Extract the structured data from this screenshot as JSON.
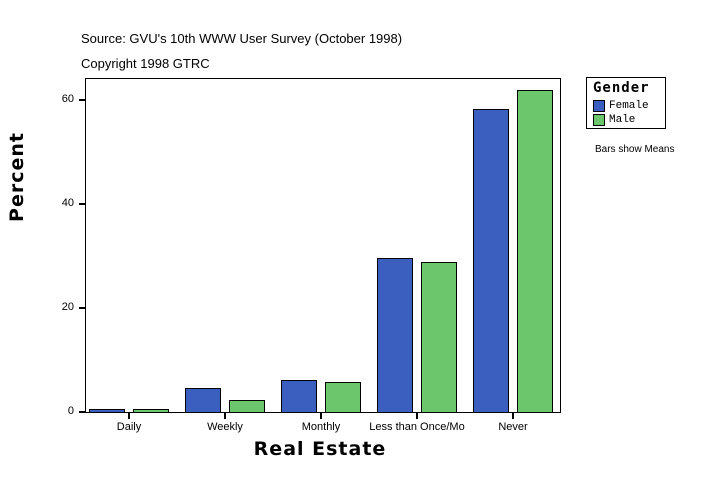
{
  "header": {
    "source": "Source: GVU's 10th WWW User Survey (October 1998)",
    "copyright": "Copyright 1998 GTRC"
  },
  "legend": {
    "title": "Gender",
    "items": [
      {
        "label": "Female",
        "color": "#3a5fbf"
      },
      {
        "label": "Male",
        "color": "#6cc76c"
      }
    ]
  },
  "note": "Bars show Means",
  "chart_data": {
    "type": "bar",
    "title": "",
    "xlabel": "Real Estate",
    "ylabel": "Percent",
    "ylim": [
      0,
      64
    ],
    "yticks": [
      0,
      20,
      40,
      60
    ],
    "grid": false,
    "legend_position": "right",
    "categories": [
      "Daily",
      "Weekly",
      "Monthly",
      "Less than Once/Mo",
      "Never"
    ],
    "series": [
      {
        "name": "Female",
        "color": "#3a5fbf",
        "values": [
          0.6,
          4.6,
          6.2,
          29.6,
          58.3
        ]
      },
      {
        "name": "Male",
        "color": "#6cc76c",
        "values": [
          0.6,
          2.3,
          5.8,
          28.8,
          61.9
        ]
      }
    ]
  }
}
